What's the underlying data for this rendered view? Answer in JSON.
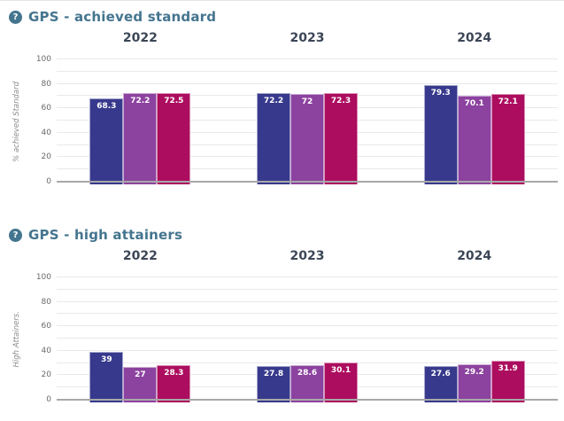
{
  "ui": {
    "help_glyph": "?",
    "colors": {
      "title_accent": "#44758f",
      "year_label": "#3b4656",
      "axis_line": "#a8a8a8",
      "gridline": "#e9e9ed",
      "bar_navy": "#37398c",
      "bar_purple": "#8c429f",
      "bar_crimson": "#ac0d5e",
      "value_label": "#ffffff"
    }
  },
  "chart_data": [
    {
      "type": "bar",
      "title": "GPS - achieved standard",
      "ylabel": "% achieved Standard",
      "ylim": [
        0,
        100
      ],
      "ytick_step": 20,
      "gridline_step": 10,
      "legend": "none",
      "categories": [
        "2022",
        "2023",
        "2024"
      ],
      "series": [
        {
          "name": "navy-bar",
          "color": "#37398c",
          "values": [
            68.3,
            72.2,
            79.3
          ]
        },
        {
          "name": "purple-bar",
          "color": "#8c429f",
          "values": [
            72.2,
            72,
            70.1
          ]
        },
        {
          "name": "crimson-bar",
          "color": "#ac0d5e",
          "values": [
            72.5,
            72.3,
            72.1
          ]
        }
      ]
    },
    {
      "type": "bar",
      "title": "GPS - high attainers",
      "ylabel": "High Attainers.",
      "ylim": [
        0,
        100
      ],
      "ytick_step": 20,
      "gridline_step": 10,
      "legend": "none",
      "categories": [
        "2022",
        "2023",
        "2024"
      ],
      "series": [
        {
          "name": "navy-bar",
          "color": "#37398c",
          "values": [
            39,
            27.8,
            27.6
          ]
        },
        {
          "name": "purple-bar",
          "color": "#8c429f",
          "values": [
            27,
            28.6,
            29.2
          ]
        },
        {
          "name": "crimson-bar",
          "color": "#ac0d5e",
          "values": [
            28.3,
            30.1,
            31.9
          ]
        }
      ]
    }
  ]
}
